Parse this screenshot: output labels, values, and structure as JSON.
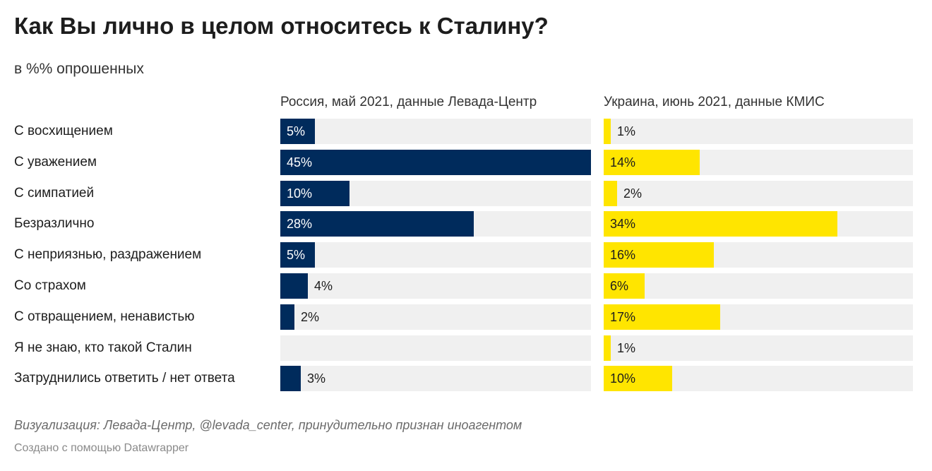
{
  "chart_data": {
    "type": "bar",
    "orientation": "horizontal",
    "title": "Как Вы лично в целом относитесь к Сталину?",
    "subtitle": "в %% опрошенных",
    "categories": [
      "С восхищением",
      "С уважением",
      "С симпатией",
      "Безразлично",
      "С неприязнью, раздражением",
      "Со страхом",
      "С отвращением, ненавистью",
      "Я не знаю, кто такой Сталин",
      "Затруднились ответить / нет ответа"
    ],
    "series": [
      {
        "name": "Россия, май 2021, данные Левада-Центр",
        "color": "#002b5c",
        "values": [
          5,
          45,
          10,
          28,
          5,
          4,
          2,
          null,
          3
        ],
        "labels": [
          "5%",
          "45%",
          "10%",
          "28%",
          "5%",
          "4%",
          "2%",
          "",
          "3%"
        ]
      },
      {
        "name": "Украина, июнь 2021, данные КМИС",
        "color": "#ffe500",
        "values": [
          1,
          14,
          2,
          34,
          16,
          6,
          17,
          1,
          10
        ],
        "labels": [
          "1%",
          "14%",
          "2%",
          "34%",
          "16%",
          "6%",
          "17%",
          "1%",
          "10%"
        ]
      }
    ],
    "xlim": [
      0,
      45
    ],
    "grid": false,
    "legend": "panel titles above each column"
  },
  "footer": {
    "note": "Визуализация: Левада-Центр, @levada_center, принудительно признан иноагентом",
    "credit": "Создано с помощью Datawrapper"
  }
}
